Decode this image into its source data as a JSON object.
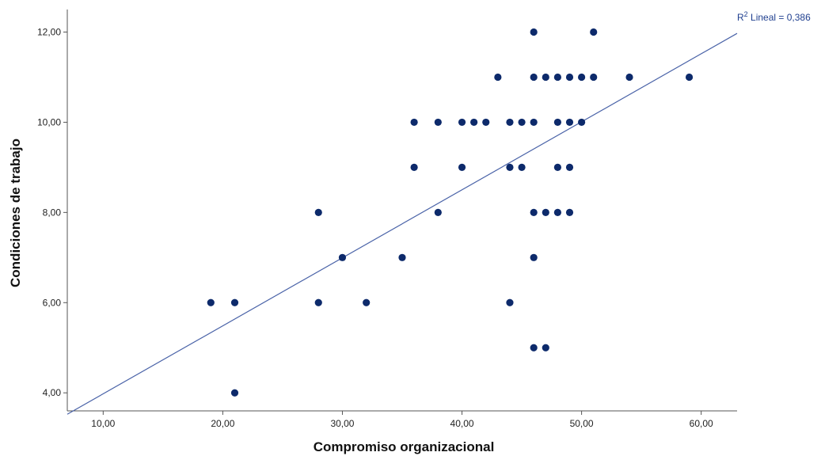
{
  "chart_data": {
    "type": "scatter",
    "xlabel": "Compromiso organizacional",
    "ylabel": "Condiciones de trabajo",
    "xlim": [
      7,
      63
    ],
    "ylim": [
      3.6,
      12.5
    ],
    "x_ticks": [
      10,
      20,
      30,
      40,
      50,
      60
    ],
    "x_tick_labels": [
      "10,00",
      "20,00",
      "30,00",
      "40,00",
      "50,00",
      "60,00"
    ],
    "y_ticks": [
      4,
      6,
      8,
      10,
      12
    ],
    "y_tick_labels": [
      "4,00",
      "6,00",
      "8,00",
      "10,00",
      "12,00"
    ],
    "grid": false,
    "point_color": "#0d2a6b",
    "line_color": "#4a63a8",
    "points": [
      {
        "x": 19,
        "y": 6
      },
      {
        "x": 21,
        "y": 6
      },
      {
        "x": 21,
        "y": 4
      },
      {
        "x": 28,
        "y": 8
      },
      {
        "x": 28,
        "y": 6
      },
      {
        "x": 30,
        "y": 7
      },
      {
        "x": 32,
        "y": 6
      },
      {
        "x": 35,
        "y": 7
      },
      {
        "x": 36,
        "y": 10
      },
      {
        "x": 36,
        "y": 9
      },
      {
        "x": 38,
        "y": 10
      },
      {
        "x": 38,
        "y": 8
      },
      {
        "x": 40,
        "y": 10
      },
      {
        "x": 40,
        "y": 9
      },
      {
        "x": 41,
        "y": 10
      },
      {
        "x": 42,
        "y": 10
      },
      {
        "x": 43,
        "y": 11
      },
      {
        "x": 44,
        "y": 10
      },
      {
        "x": 44,
        "y": 9
      },
      {
        "x": 44,
        "y": 6
      },
      {
        "x": 45,
        "y": 10
      },
      {
        "x": 45,
        "y": 9
      },
      {
        "x": 46,
        "y": 12
      },
      {
        "x": 46,
        "y": 11
      },
      {
        "x": 46,
        "y": 10
      },
      {
        "x": 46,
        "y": 8
      },
      {
        "x": 46,
        "y": 7
      },
      {
        "x": 46,
        "y": 5
      },
      {
        "x": 47,
        "y": 11
      },
      {
        "x": 47,
        "y": 8
      },
      {
        "x": 47,
        "y": 5
      },
      {
        "x": 48,
        "y": 11
      },
      {
        "x": 48,
        "y": 10
      },
      {
        "x": 48,
        "y": 9
      },
      {
        "x": 48,
        "y": 8
      },
      {
        "x": 49,
        "y": 11
      },
      {
        "x": 49,
        "y": 10
      },
      {
        "x": 49,
        "y": 9
      },
      {
        "x": 49,
        "y": 8
      },
      {
        "x": 50,
        "y": 11
      },
      {
        "x": 50,
        "y": 10
      },
      {
        "x": 51,
        "y": 12
      },
      {
        "x": 51,
        "y": 11
      },
      {
        "x": 54,
        "y": 11
      },
      {
        "x": 59,
        "y": 11
      }
    ],
    "fit_line": {
      "intercept": 2.47,
      "slope": 0.1508,
      "x_range": [
        7,
        63
      ]
    },
    "annotation": {
      "base": "R",
      "superscript": "2",
      "text": " Lineal = 0,386"
    }
  }
}
